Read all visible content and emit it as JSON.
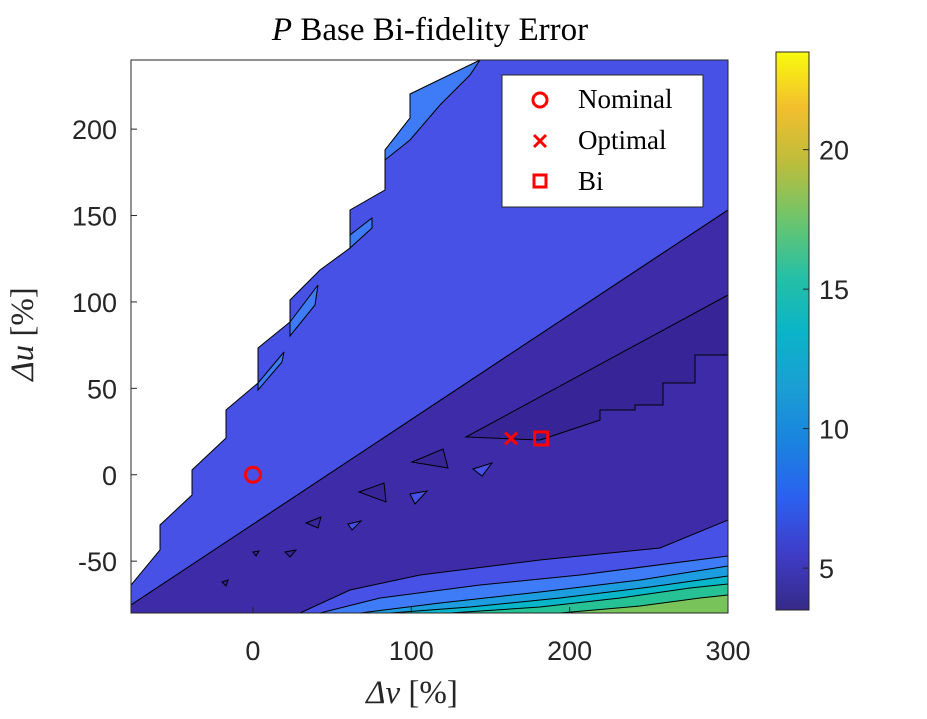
{
  "chart_data": {
    "type": "contour",
    "title": "P Base Bi-fidelity Error",
    "title_math": "P",
    "title_rest": "Base Bi-fidelity Error",
    "xlabel": "Δν [%]",
    "xlabel_sym": "Δν",
    "xlabel_unit": "[%]",
    "ylabel": "Δu [%]",
    "ylabel_sym": "Δu",
    "ylabel_unit": "[%]",
    "xlim": [
      -77,
      300
    ],
    "ylim": [
      -80,
      240
    ],
    "xticks": [
      0,
      100,
      200,
      300
    ],
    "yticks": [
      -50,
      0,
      50,
      100,
      150,
      200
    ],
    "colorbar": {
      "range": [
        3.5,
        23.5
      ],
      "ticks": [
        5,
        10,
        15,
        20
      ],
      "colormap": "parula"
    },
    "grid": false,
    "legend_position": "top-right",
    "series": [
      {
        "name": "Nominal",
        "marker": "circle",
        "color": "#ff0000",
        "x": 0,
        "y": 0
      },
      {
        "name": "Optimal",
        "marker": "x",
        "color": "#ff0000",
        "x": 163,
        "y": 21
      },
      {
        "name": "Bi",
        "marker": "square",
        "color": "#ff0000",
        "x": 182,
        "y": 21
      }
    ],
    "contour_levels": [
      {
        "value": 4.0,
        "color": "#3e2ba8"
      },
      {
        "value": 5.5,
        "color": "#4751e6"
      },
      {
        "value": 7.0,
        "color": "#3d7cf6"
      },
      {
        "value": 9.5,
        "color": "#1c9de0"
      },
      {
        "value": 12.0,
        "color": "#09b5c8"
      },
      {
        "value": 14.5,
        "color": "#26c194"
      },
      {
        "value": 17.0,
        "color": "#78c45a"
      }
    ]
  }
}
